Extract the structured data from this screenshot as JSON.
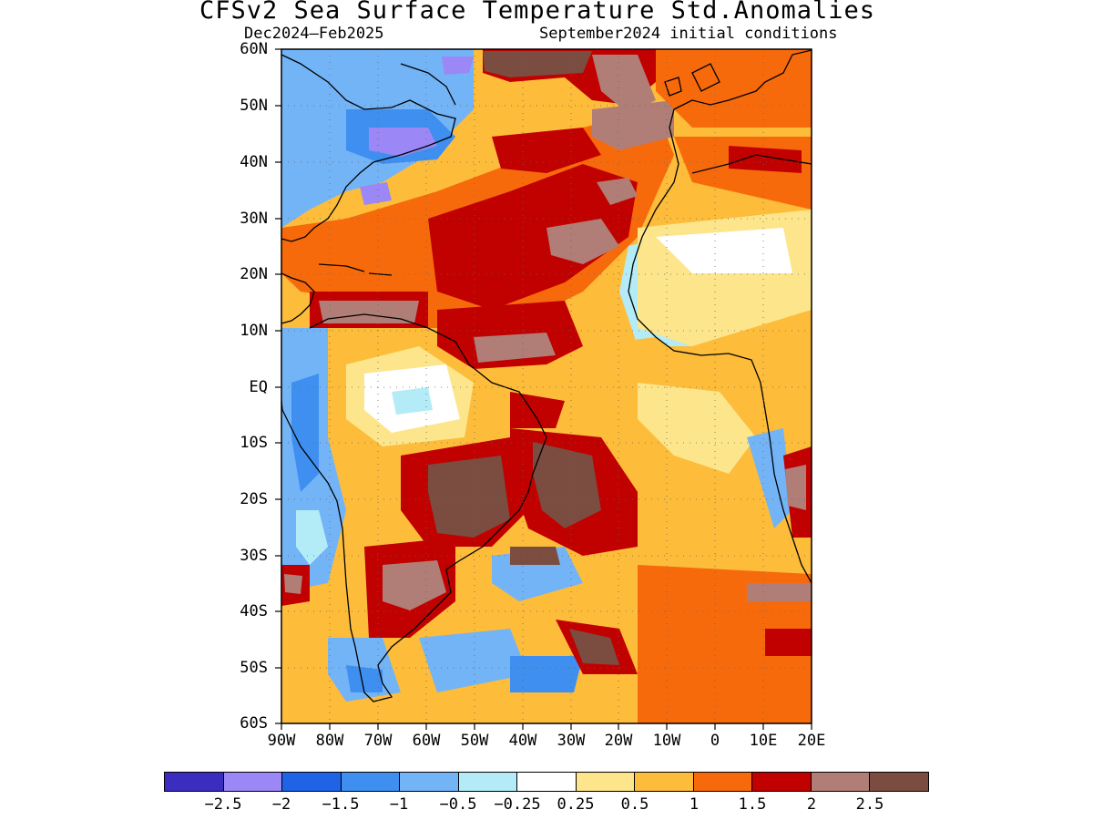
{
  "header": {
    "title": "CFSv2 Sea Surface Temperature Std.Anomalies",
    "period": "Dec2024–Feb2025",
    "initial_conditions": "September2024 initial conditions"
  },
  "map": {
    "lat_labels": [
      "60N",
      "50N",
      "40N",
      "30N",
      "20N",
      "10N",
      "EQ",
      "10S",
      "20S",
      "30S",
      "40S",
      "50S",
      "60S"
    ],
    "lon_labels": [
      "90W",
      "80W",
      "70W",
      "60W",
      "50W",
      "40W",
      "30W",
      "20W",
      "10W",
      "0",
      "10E",
      "20E"
    ],
    "lat_range": [
      -60,
      60
    ],
    "lon_range": [
      -90,
      20
    ],
    "grid": "dotted"
  },
  "legend": {
    "colors": [
      "#3b2dbf",
      "#9b87f5",
      "#1f63e6",
      "#3f8ff0",
      "#73b4f7",
      "#b3ecf7",
      "#ffffff",
      "#fde58c",
      "#fdbc3a",
      "#f76a0b",
      "#c10000",
      "#b07e76",
      "#7b4c40"
    ],
    "labels": [
      "−2.5",
      "−2",
      "−1.5",
      "−1",
      "−0.5",
      "−0.25",
      "0.25",
      "0.5",
      "1",
      "1.5",
      "2",
      "2.5"
    ]
  },
  "colors": {
    "land": "#ffffff",
    "coast": "#000000"
  }
}
